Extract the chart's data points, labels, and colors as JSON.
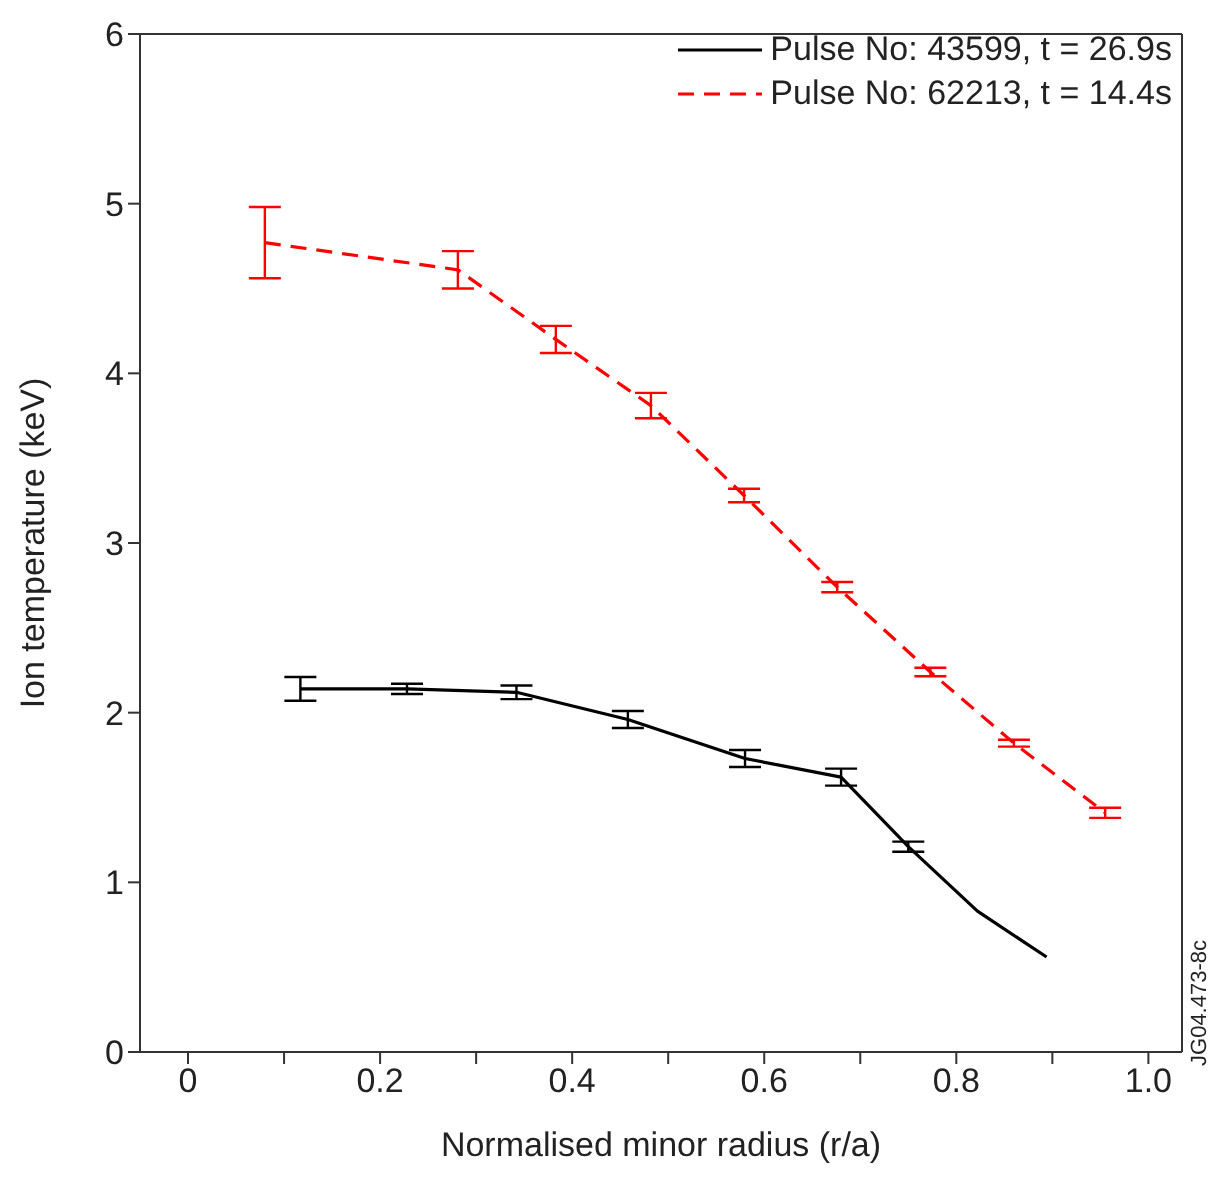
{
  "chart_data": {
    "type": "line",
    "xlabel": "Normalised minor radius (r/a)",
    "ylabel": "Ion temperature (keV)",
    "xlim": [
      -0.05,
      1.035
    ],
    "ylim": [
      0,
      6
    ],
    "xticks": [
      0,
      {
        "value": 0.1,
        "label": null
      },
      0.2,
      {
        "value": 0.3,
        "label": null
      },
      0.4,
      {
        "value": 0.5,
        "label": null
      },
      0.6,
      {
        "value": 0.7,
        "label": null
      },
      0.8,
      {
        "value": 0.9,
        "label": null
      },
      {
        "value": 1.0,
        "label": "1.0"
      }
    ],
    "yticks": [
      0,
      1,
      2,
      3,
      4,
      5,
      6
    ],
    "grid": false,
    "legend": "top right",
    "marker": "none",
    "series": [
      {
        "name": "Pulse No: 43599, t = 26.9s",
        "color": "#000000",
        "line_style": "solid",
        "x": [
          0.117,
          0.228,
          0.342,
          0.458,
          0.58,
          0.68,
          0.75,
          0.822,
          0.894
        ],
        "values": [
          2.14,
          2.14,
          2.12,
          1.96,
          1.73,
          1.62,
          1.21,
          0.83,
          0.56
        ],
        "errors": [
          0.07,
          0.03,
          0.04,
          0.05,
          0.05,
          0.05,
          0.03,
          null,
          null
        ]
      },
      {
        "name": "Pulse No: 62213, t = 14.4s",
        "color": "#ff0000",
        "line_style": "dashed",
        "x": [
          0.08,
          0.281,
          0.383,
          0.482,
          0.579,
          0.676,
          0.773,
          0.86,
          0.955
        ],
        "values": [
          4.77,
          4.61,
          4.2,
          3.81,
          3.28,
          2.74,
          2.24,
          1.82,
          1.41
        ],
        "errors": [
          0.21,
          0.11,
          0.08,
          0.075,
          0.04,
          0.03,
          0.025,
          0.02,
          0.03
        ]
      }
    ],
    "annotations": [
      "JG04.473-8c"
    ]
  }
}
